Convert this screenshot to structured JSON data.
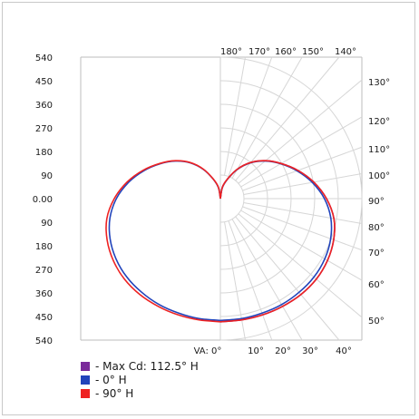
{
  "chart_data": {
    "type": "polar",
    "y_ticks": [
      "540",
      "450",
      "360",
      "270",
      "180",
      "90",
      "0.00",
      "90",
      "180",
      "270",
      "360",
      "450",
      "540"
    ],
    "y_range": [
      0,
      540
    ],
    "top_angle_labels": [
      "180°",
      "170°",
      "160°",
      "150°",
      "140°"
    ],
    "right_angle_labels": [
      "130°",
      "120°",
      "110°",
      "100°",
      "90°",
      "80°",
      "70°",
      "60°",
      "50°"
    ],
    "bottom_angle_labels": [
      "VA: 0°",
      "10°",
      "20°",
      "30°",
      "40°"
    ],
    "angle_grid_step_deg": 10,
    "radial_grid_step": 90,
    "grid": true,
    "legend_position": "bottom-left",
    "series": [
      {
        "name": "- Max Cd: 112.5° H",
        "color": "#7a2a9a",
        "angles_deg": [
          0,
          10,
          20,
          30,
          40,
          50,
          60,
          70,
          80,
          90,
          100,
          110,
          120,
          130,
          140,
          150,
          160,
          170,
          180
        ],
        "values": [
          470,
          470,
          472,
          475,
          478,
          478,
          472,
          460,
          440,
          405,
          362,
          315,
          268,
          225,
          180,
          130,
          80,
          45,
          0
        ],
        "mirrored": false
      },
      {
        "name": "- 0° H",
        "color": "#2244bb",
        "angles_deg": [
          0,
          10,
          20,
          30,
          40,
          50,
          60,
          70,
          80,
          90,
          100,
          110,
          120,
          130,
          140,
          150,
          160,
          170,
          180
        ],
        "values": [
          465,
          465,
          465,
          467,
          467,
          466,
          460,
          448,
          428,
          397,
          356,
          311,
          266,
          223,
          178,
          128,
          78,
          42,
          0
        ],
        "mirrored": true
      },
      {
        "name": "- 90° H",
        "color": "#ee2222",
        "angles_deg": [
          0,
          10,
          20,
          30,
          40,
          50,
          60,
          70,
          80,
          90,
          100,
          110,
          120,
          130,
          140,
          150,
          160,
          170,
          180
        ],
        "values": [
          470,
          470,
          472,
          475,
          478,
          478,
          472,
          460,
          440,
          405,
          362,
          315,
          268,
          225,
          180,
          130,
          80,
          45,
          0
        ],
        "mirrored": true
      }
    ]
  },
  "legend": {
    "items": [
      {
        "label": "- Max Cd: 112.5° H",
        "color": "#7a2a9a"
      },
      {
        "label": "- 0° H",
        "color": "#2244bb"
      },
      {
        "label": "- 90° H",
        "color": "#ee2222"
      }
    ]
  }
}
